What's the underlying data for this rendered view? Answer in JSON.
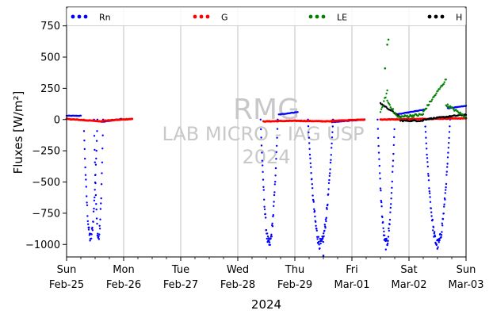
{
  "chart_data": {
    "type": "scatter",
    "ylabel": "Fluxes [W/m²]",
    "xlabel": "2024",
    "ylim": [
      -1100,
      900
    ],
    "xlim": [
      "2024-02-25",
      "2024-03-03"
    ],
    "y_ticks": [
      -1000,
      -750,
      -500,
      -250,
      0,
      250,
      500,
      750
    ],
    "y_tick_labels": [
      "−1000",
      "−750",
      "−500",
      "−250",
      "0",
      "250",
      "500",
      "750"
    ],
    "x_ticks": [
      {
        "day": "Sun",
        "date": "Feb-25"
      },
      {
        "day": "Mon",
        "date": "Feb-26"
      },
      {
        "day": "Tue",
        "date": "Feb-27"
      },
      {
        "day": "Wed",
        "date": "Feb-28"
      },
      {
        "day": "Thu",
        "date": "Feb-29"
      },
      {
        "day": "Fri",
        "date": "Mar-01"
      },
      {
        "day": "Sat",
        "date": "Mar-02"
      },
      {
        "day": "Sun",
        "date": "Mar-03"
      }
    ],
    "grid": "vertical",
    "legend_position": "top",
    "watermark": [
      "RMG",
      "LAB MICRO - IAG USP",
      "2024"
    ],
    "series": [
      {
        "name": "Rn",
        "color": "#0000ff"
      },
      {
        "name": "G",
        "color": "#ff0000"
      },
      {
        "name": "LE",
        "color": "#008000"
      },
      {
        "name": "H",
        "color": "#000000"
      }
    ],
    "segments": [
      {
        "series": "Rn",
        "kind": "line",
        "x": [
          0.0,
          0.25
        ],
        "y": [
          30,
          30
        ]
      },
      {
        "series": "Rn",
        "kind": "dip",
        "center": 0.42,
        "half_width": 0.12,
        "min": -950,
        "base": 0
      },
      {
        "series": "Rn",
        "kind": "dip",
        "center": 0.56,
        "half_width": 0.08,
        "min": -950,
        "base": 0
      },
      {
        "series": "Rn",
        "kind": "line",
        "x": [
          0.62,
          0.96
        ],
        "y": [
          -20,
          5
        ]
      },
      {
        "series": "G",
        "kind": "line",
        "x": [
          0.0,
          0.62
        ],
        "y": [
          5,
          -15
        ]
      },
      {
        "series": "G",
        "kind": "line",
        "x": [
          0.62,
          1.15
        ],
        "y": [
          -10,
          5
        ]
      },
      {
        "series": "Rn",
        "kind": "dip",
        "center": 3.55,
        "half_width": 0.15,
        "min": -1000,
        "base": 0
      },
      {
        "series": "Rn",
        "kind": "line",
        "x": [
          3.72,
          4.05
        ],
        "y": [
          40,
          60
        ]
      },
      {
        "series": "Rn",
        "kind": "dip",
        "center": 4.45,
        "half_width": 0.22,
        "min": -1000,
        "base": 0
      },
      {
        "series": "Rn",
        "kind": "line",
        "x": [
          4.65,
          5.22
        ],
        "y": [
          -20,
          0
        ]
      },
      {
        "series": "G",
        "kind": "line",
        "x": [
          3.45,
          4.0
        ],
        "y": [
          -15,
          -10
        ]
      },
      {
        "series": "G",
        "kind": "line",
        "x": [
          4.0,
          4.65
        ],
        "y": [
          -10,
          -15
        ]
      },
      {
        "series": "G",
        "kind": "line",
        "x": [
          4.65,
          5.22
        ],
        "y": [
          -10,
          0
        ]
      },
      {
        "series": "Rn",
        "kind": "dip",
        "center": 5.6,
        "half_width": 0.15,
        "min": -1000,
        "base": 0
      },
      {
        "series": "Rn",
        "kind": "line",
        "x": [
          5.78,
          6.28
        ],
        "y": [
          40,
          80
        ]
      },
      {
        "series": "Rn",
        "kind": "dip",
        "center": 6.5,
        "half_width": 0.22,
        "min": -1000,
        "base": 0
      },
      {
        "series": "Rn",
        "kind": "line",
        "x": [
          6.68,
          7.0
        ],
        "y": [
          90,
          110
        ]
      },
      {
        "series": "G",
        "kind": "line",
        "x": [
          5.5,
          7.0
        ],
        "y": [
          0,
          10
        ]
      },
      {
        "series": "H",
        "kind": "line",
        "x": [
          5.5,
          5.85
        ],
        "y": [
          130,
          20
        ]
      },
      {
        "series": "H",
        "kind": "line",
        "x": [
          5.85,
          6.25
        ],
        "y": [
          -10,
          -10
        ]
      },
      {
        "series": "H",
        "kind": "line",
        "x": [
          6.25,
          7.0
        ],
        "y": [
          0,
          40
        ]
      },
      {
        "series": "LE",
        "kind": "line",
        "x": [
          5.5,
          5.62
        ],
        "y": [
          50,
          230
        ]
      },
      {
        "series": "LE",
        "kind": "line",
        "x": [
          5.62,
          5.78
        ],
        "y": [
          150,
          30
        ]
      },
      {
        "series": "LE",
        "kind": "line",
        "x": [
          5.8,
          6.25
        ],
        "y": [
          20,
          40
        ]
      },
      {
        "series": "LE",
        "kind": "line",
        "x": [
          6.25,
          6.65
        ],
        "y": [
          60,
          320
        ]
      },
      {
        "series": "LE",
        "kind": "line",
        "x": [
          6.65,
          7.0
        ],
        "y": [
          120,
          20
        ]
      }
    ],
    "outliers": [
      {
        "series": "LE",
        "x": 5.64,
        "y": 640
      },
      {
        "series": "LE",
        "x": 5.62,
        "y": 600
      },
      {
        "series": "LE",
        "x": 5.58,
        "y": 410
      },
      {
        "series": "Rn",
        "x": 4.5,
        "y": -1090
      }
    ]
  }
}
